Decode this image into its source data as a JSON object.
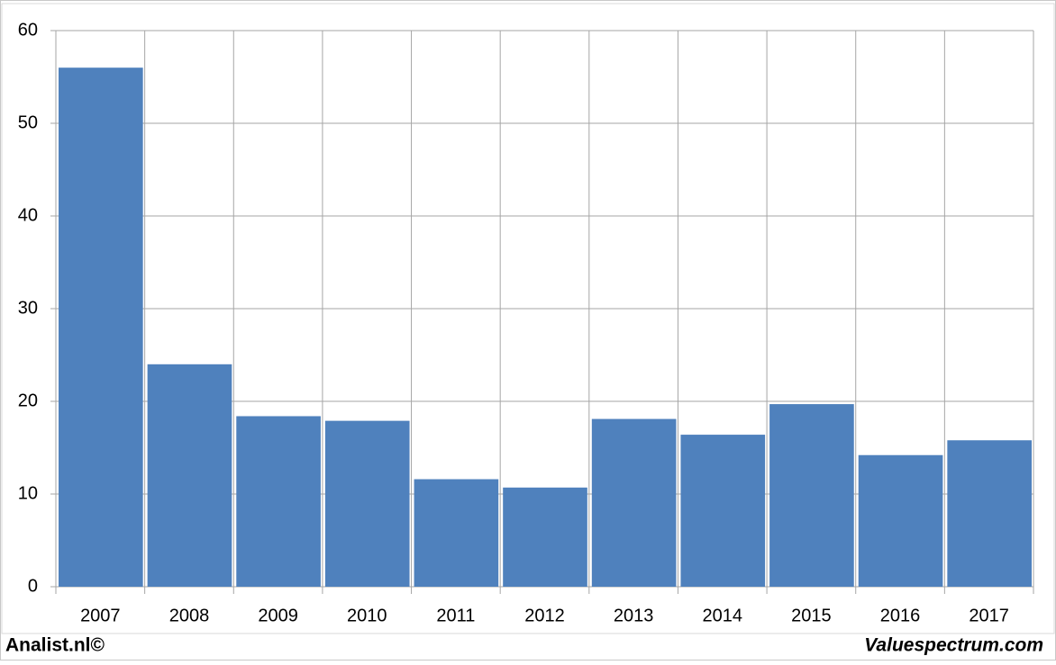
{
  "chart_data": {
    "type": "bar",
    "categories": [
      "2007",
      "2008",
      "2009",
      "2010",
      "2011",
      "2012",
      "2013",
      "2014",
      "2015",
      "2016",
      "2017"
    ],
    "values": [
      56.0,
      24.0,
      18.4,
      17.9,
      11.6,
      10.7,
      18.1,
      16.4,
      19.7,
      14.2,
      15.8
    ],
    "color": "#4f81bd",
    "ylim": [
      0,
      60
    ],
    "yticks": [
      0,
      10,
      20,
      30,
      40,
      50,
      60
    ],
    "grid": true
  },
  "footer": {
    "left": "Analist.nl©",
    "right": "Valuespectrum.com"
  }
}
